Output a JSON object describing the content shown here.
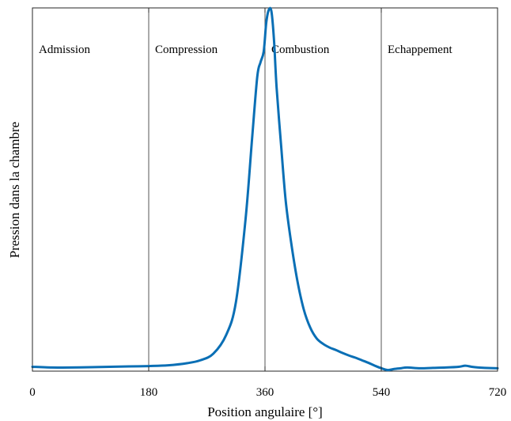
{
  "chart_data": {
    "type": "line",
    "xlabel": "Position angulaire [°]",
    "ylabel": "Pression dans la chambre",
    "xlim": [
      0,
      720
    ],
    "ylim": [
      0,
      1.0
    ],
    "xticks": [
      0,
      180,
      360,
      540,
      720
    ],
    "xtick_labels": [
      "0",
      "180",
      "360",
      "540",
      "720"
    ],
    "yticks_shown": false,
    "grid": false,
    "phase_boundaries": [
      180,
      360,
      540
    ],
    "phases": [
      {
        "label": "Admission",
        "start": 0,
        "end": 180
      },
      {
        "label": "Compression",
        "start": 180,
        "end": 360
      },
      {
        "label": "Combustion",
        "start": 360,
        "end": 540
      },
      {
        "label": "Echappement",
        "start": 540,
        "end": 720
      }
    ],
    "series": [
      {
        "color": "#0a6fb5",
        "x": [
          0,
          30,
          60,
          90,
          120,
          150,
          180,
          210,
          240,
          260,
          280,
          300,
          315,
          330,
          340,
          348,
          353,
          358,
          362,
          366,
          370,
          374,
          378,
          385,
          392,
          400,
          410,
          420,
          430,
          440,
          450,
          460,
          470,
          480,
          490,
          500,
          510,
          520,
          530,
          540,
          550,
          560,
          570,
          580,
          600,
          620,
          640,
          660,
          670,
          680,
          690,
          700,
          720
        ],
        "y": [
          0.012,
          0.01,
          0.01,
          0.011,
          0.012,
          0.013,
          0.014,
          0.016,
          0.022,
          0.03,
          0.048,
          0.1,
          0.19,
          0.42,
          0.64,
          0.81,
          0.85,
          0.88,
          0.96,
          0.995,
          0.99,
          0.91,
          0.78,
          0.62,
          0.47,
          0.36,
          0.25,
          0.17,
          0.12,
          0.09,
          0.075,
          0.065,
          0.058,
          0.05,
          0.043,
          0.037,
          0.03,
          0.023,
          0.015,
          0.008,
          0.003,
          0.006,
          0.008,
          0.01,
          0.008,
          0.009,
          0.01,
          0.012,
          0.015,
          0.012,
          0.01,
          0.009,
          0.008
        ]
      }
    ]
  }
}
